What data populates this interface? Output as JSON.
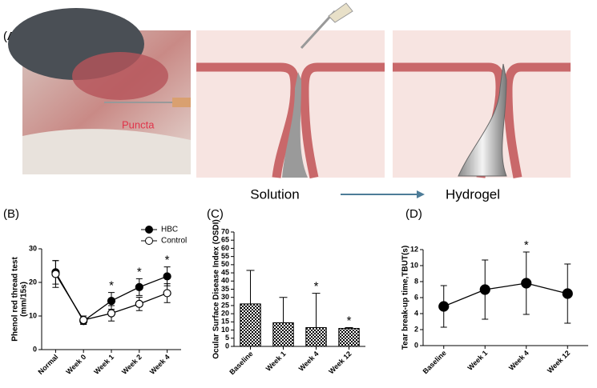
{
  "panel_a": {
    "label": "(A)",
    "photo_label": "Puncta",
    "left_caption": "Solution",
    "right_caption": "Hydrogel"
  },
  "chart_data": [
    {
      "type": "line",
      "label": "(B)",
      "y_label": [
        "Phenol red thread test",
        "(mm/15s)"
      ],
      "categories": [
        "Normal",
        "Week 0",
        "Week 1",
        "Week 2",
        "Week 4"
      ],
      "series": [
        {
          "name": "HBC",
          "color": "#000000",
          "marker": "filled",
          "values": [
            23,
            8.5,
            14.5,
            18.6,
            21.8
          ],
          "errors": [
            3.5,
            1,
            2.5,
            2.5,
            2.8
          ]
        },
        {
          "name": "Control",
          "color": "#000000",
          "marker": "open",
          "values": [
            22.5,
            8.8,
            10.8,
            13.6,
            16.8
          ],
          "errors": [
            4,
            1.2,
            2.3,
            2,
            2.8
          ]
        }
      ],
      "markers": [
        null,
        null,
        "*",
        "*",
        "*"
      ],
      "ylim": [
        0,
        30
      ],
      "yticks": [
        0,
        10,
        20,
        30
      ],
      "legend": "upper right"
    },
    {
      "type": "bar",
      "label": "(C)",
      "y_label": [
        "Ocular Surface Disease Index (OSDI)"
      ],
      "categories": [
        "Baseline",
        "Week 1",
        "Week 4",
        "Week 12"
      ],
      "values": [
        26,
        14.5,
        11.5,
        11
      ],
      "errors": [
        20.5,
        15.5,
        21,
        0.5
      ],
      "color": "#000000",
      "pattern": "checker",
      "markers": [
        null,
        null,
        "*",
        "*"
      ],
      "ylim": [
        0,
        70
      ],
      "yticks": [
        0,
        5,
        10,
        15,
        20,
        25,
        30,
        35,
        40,
        45,
        50,
        55,
        60,
        65,
        70
      ]
    },
    {
      "type": "line",
      "label": "(D)",
      "y_label": [
        "Tear break-up time,TBUT(s)"
      ],
      "categories": [
        "Baseline",
        "Week 1",
        "Week 4",
        "Week 12"
      ],
      "series": [
        {
          "color": "#000000",
          "marker": "filled",
          "values": [
            4.9,
            7,
            7.8,
            6.5
          ],
          "errors": [
            2.6,
            3.7,
            3.9,
            3.7
          ]
        }
      ],
      "markers": [
        null,
        null,
        "*",
        null
      ],
      "ylim": [
        0,
        12
      ],
      "yticks": [
        0,
        2,
        4,
        6,
        8,
        10,
        12
      ]
    }
  ]
}
